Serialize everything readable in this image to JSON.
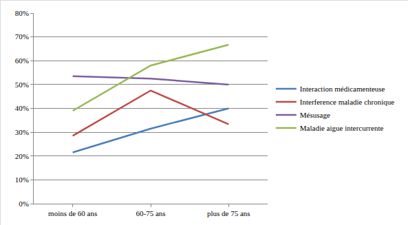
{
  "chart_data": {
    "type": "line",
    "categories": [
      "moins de 60 ans",
      "60-75 ans",
      "plus de 75 ans"
    ],
    "series": [
      {
        "name": "Interaction médicamenteuse",
        "color": "#4a7ebb",
        "values": [
          21.5,
          31.5,
          40
        ]
      },
      {
        "name": "Interference maladie chronique",
        "color": "#be4b48",
        "values": [
          28.5,
          47.5,
          33.3
        ]
      },
      {
        "name": "Mésusage",
        "color": "#7d60a0",
        "values": [
          53.5,
          52.5,
          50
        ]
      },
      {
        "name": "Maladie aigue intercurrente",
        "color": "#98b954",
        "values": [
          39,
          58,
          66.7
        ]
      }
    ],
    "ylim": [
      0,
      80
    ],
    "yticks": [
      {
        "value": 0,
        "label": "0%"
      },
      {
        "value": 10,
        "label": "10%"
      },
      {
        "value": 20,
        "label": "20%"
      },
      {
        "value": 30,
        "label": "30%"
      },
      {
        "value": 40,
        "label": "40%"
      },
      {
        "value": 50,
        "label": "50%"
      },
      {
        "value": 60,
        "label": "60%"
      },
      {
        "value": 70,
        "label": "70%"
      },
      {
        "value": 80,
        "label": "80%"
      }
    ],
    "grid": true,
    "legend": "right",
    "marker": "none",
    "line_style": "solid"
  }
}
